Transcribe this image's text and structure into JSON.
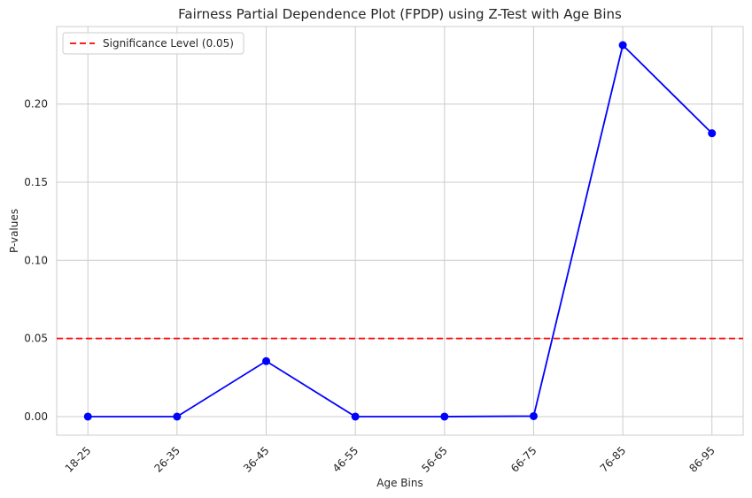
{
  "chart_data": {
    "type": "line",
    "title": "Fairness Partial Dependence Plot (FPDP) using Z-Test with Age Bins",
    "xlabel": "Age Bins",
    "ylabel": "P-values",
    "categories": [
      "18-25",
      "26-35",
      "36-45",
      "46-55",
      "56-65",
      "66-75",
      "76-85",
      "86-95"
    ],
    "series": [
      {
        "values": [
          0.0,
          0.0,
          0.0355,
          0.0,
          0.0,
          0.0003,
          0.2377,
          0.1813
        ],
        "color": "#0000ff",
        "marker": "circle"
      }
    ],
    "reference_lines": [
      {
        "name": "Significance Level (0.05)",
        "y": 0.05,
        "color": "#ff0000",
        "style": "dashed"
      }
    ],
    "yticks": [
      0.0,
      0.05,
      0.1,
      0.15,
      0.2
    ],
    "ytick_labels": [
      "0.00",
      "0.05",
      "0.10",
      "0.15",
      "0.20"
    ],
    "ylim": [
      -0.0119,
      0.2496
    ],
    "xtick_rotation": 45,
    "grid": true,
    "legend_position": "top-left",
    "legend_entries": [
      "Significance Level (0.05)"
    ]
  }
}
